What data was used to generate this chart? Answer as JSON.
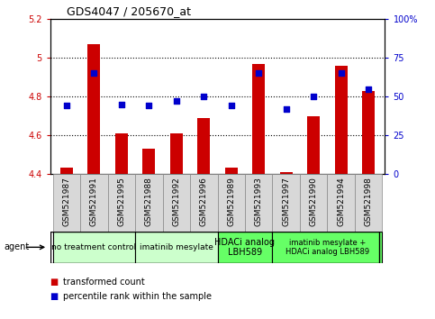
{
  "title": "GDS4047 / 205670_at",
  "samples": [
    "GSM521987",
    "GSM521991",
    "GSM521995",
    "GSM521988",
    "GSM521992",
    "GSM521996",
    "GSM521989",
    "GSM521993",
    "GSM521997",
    "GSM521990",
    "GSM521994",
    "GSM521998"
  ],
  "bar_values": [
    4.43,
    5.07,
    4.61,
    4.53,
    4.61,
    4.69,
    4.43,
    4.97,
    4.41,
    4.7,
    4.96,
    4.83
  ],
  "bar_base": 4.4,
  "percentile_values": [
    44,
    65,
    45,
    44,
    47,
    50,
    44,
    65,
    42,
    50,
    65,
    55
  ],
  "ylim_left": [
    4.4,
    5.2
  ],
  "ylim_right": [
    0,
    100
  ],
  "yticks_left": [
    4.4,
    4.6,
    4.8,
    5.0,
    5.2
  ],
  "ytick_labels_left": [
    "4.4",
    "4.6",
    "4.8",
    "5",
    "5.2"
  ],
  "yticks_right": [
    0,
    25,
    50,
    75,
    100
  ],
  "ytick_labels_right": [
    "0",
    "25",
    "50",
    "75",
    "100%"
  ],
  "bar_color": "#cc0000",
  "dot_color": "#0000cc",
  "bg_color": "#ffffff",
  "agent_groups": [
    {
      "label": "no treatment control",
      "start": 0,
      "end": 3,
      "color": "#ccffcc",
      "fontsize": 6.5
    },
    {
      "label": "imatinib mesylate",
      "start": 3,
      "end": 6,
      "color": "#ccffcc",
      "fontsize": 6.5
    },
    {
      "label": "HDACi analog\nLBH589",
      "start": 6,
      "end": 8,
      "color": "#66ff66",
      "fontsize": 7
    },
    {
      "label": "imatinib mesylate +\nHDACi analog LBH589",
      "start": 8,
      "end": 12,
      "color": "#66ff66",
      "fontsize": 6.0
    }
  ],
  "tick_label_color_left": "#cc0000",
  "tick_label_color_right": "#0000cc",
  "legend_items": [
    {
      "label": "transformed count",
      "color": "#cc0000"
    },
    {
      "label": "percentile rank within the sample",
      "color": "#0000cc"
    }
  ],
  "dotted_lines": [
    4.6,
    4.8,
    5.0
  ],
  "sample_bg_color": "#d8d8d8",
  "sample_border_color": "#888888"
}
